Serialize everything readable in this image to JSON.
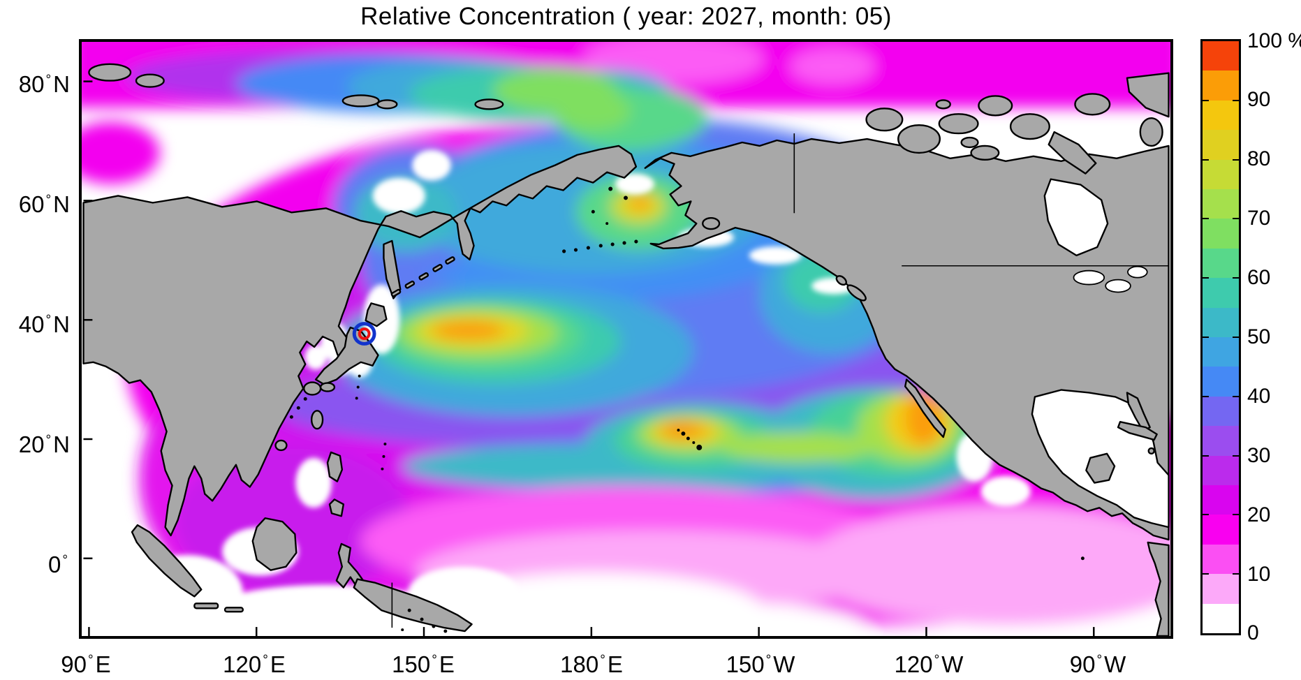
{
  "title": "Relative Concentration ( year: 2027, month: 05)",
  "axes": {
    "degree": "°",
    "x_ticks": [
      {
        "num": "90",
        "hemi": "E"
      },
      {
        "num": "120",
        "hemi": "E"
      },
      {
        "num": "150",
        "hemi": "E"
      },
      {
        "num": "180",
        "hemi": "E"
      },
      {
        "num": "150",
        "hemi": "W"
      },
      {
        "num": "120",
        "hemi": "W"
      },
      {
        "num": "90",
        "hemi": "W"
      }
    ],
    "y_ticks": [
      {
        "num": "80",
        "hemi": "N"
      },
      {
        "num": "60",
        "hemi": "N"
      },
      {
        "num": "40",
        "hemi": "N"
      },
      {
        "num": "20",
        "hemi": "N"
      },
      {
        "num": "0",
        "hemi": ""
      }
    ]
  },
  "colorbar": {
    "unit": "%",
    "min": 0,
    "max": 100,
    "band_step_pct": 5,
    "tick_labels": [
      "100 %",
      "90",
      "80",
      "70",
      "60",
      "50",
      "40",
      "30",
      "20",
      "10",
      "0"
    ],
    "band_colors_bottom_to_top": [
      "#FFFFFF",
      "#FCA9F9",
      "#FB4FF3",
      "#F900F0",
      "#D905EF",
      "#BB2BEC",
      "#9B4DEF",
      "#7467F2",
      "#4589F5",
      "#3FA5E2",
      "#3CB9C8",
      "#3ECBAD",
      "#58D88A",
      "#7FDF61",
      "#A5E04C",
      "#C6DB35",
      "#E0D020",
      "#F4C70E",
      "#FB9D07",
      "#F5430A"
    ]
  },
  "map": {
    "land_color": "#A8A8A8",
    "coast_color": "#000000",
    "no_data_color": "#FFFFFF",
    "marker": {
      "outer_ring_color": "#1133CC",
      "inner_ring_color": "#EE1111",
      "location_note": "off east coast of Japan (~141E, 38N)"
    }
  },
  "chart_data": {
    "type": "heatmap",
    "subtype": "geographic filled-contour map (equirectangular, Pacific-centered)",
    "title": "Relative Concentration ( year: 2027, month: 05)",
    "x_tick_labels": [
      "90E",
      "120E",
      "150E",
      "180E",
      "150W",
      "120W",
      "90W"
    ],
    "y_tick_labels": [
      "80N",
      "60N",
      "40N",
      "20N",
      "0"
    ],
    "value_unit": "%",
    "value_range": [
      0,
      100
    ],
    "contour_interval_pct": 5,
    "legend_position": "right vertical colorbar",
    "features": [
      {
        "feature": "source marker, concentric blue and red circles",
        "lon": "~141E",
        "lat": "~38N"
      },
      {
        "feature": "maximum east of Japan (Kuroshio Extension tongue)",
        "lon": "~150-165E",
        "lat": "~38N",
        "peak_pct": 90
      },
      {
        "feature": "maximum near Hawaii",
        "lon": "~160W",
        "lat": "~22N",
        "peak_pct": 95
      },
      {
        "feature": "maximum off Baja California coast",
        "lon": "~115W",
        "lat": "~25N",
        "peak_pct": 90
      },
      {
        "feature": "secondary maximum SE Bering Sea / Bristol Bay",
        "lon": "~170W",
        "lat": "~58N",
        "peak_pct": 85
      },
      {
        "feature": "elevated band Chukchi / East Siberian Sea along Arctic coast",
        "lon": "~160E-165W",
        "lat": "~72-80N",
        "peak_pct": 70
      },
      {
        "feature": "central / northern North Pacific",
        "value_pct": "40-55"
      },
      {
        "feature": "eastern subtropical gyre (purple region)",
        "value_pct": "25-40"
      },
      {
        "feature": "Arctic margin and marginal seas (magenta)",
        "value_pct": "10-25"
      },
      {
        "feature": "tropics south of ~15N fading to white",
        "value_pct": "0-15"
      },
      {
        "feature": "land masses",
        "value": "gray (no data)"
      }
    ]
  }
}
